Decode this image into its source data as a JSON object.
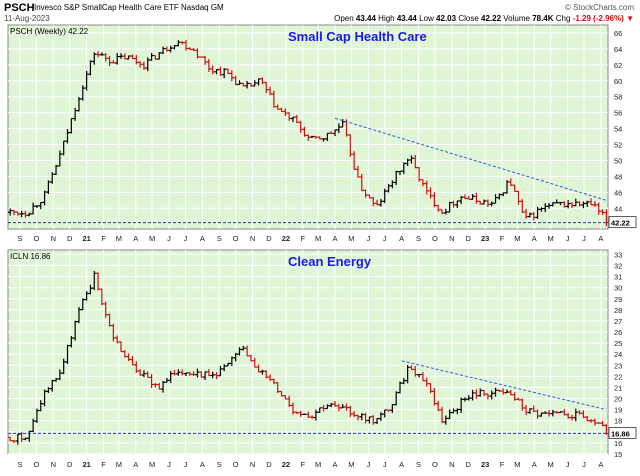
{
  "header": {
    "symbol": "PSCH",
    "name": "Invesco S&P SmallCap Health Care ETF  Nasdaq GM",
    "date": "11-Aug-2023",
    "brand": "© StockCharts.com",
    "open_label": "Open",
    "open": "43.44",
    "high_label": "High",
    "high": "43.44",
    "low_label": "Low",
    "low": "42.03",
    "close_label": "Close",
    "close": "42.22",
    "volume_label": "Volume",
    "volume": "78.4K",
    "chg_label": "Chg",
    "chg": "-1.29 (-2.96%)",
    "chg_arrow": "▼"
  },
  "colors": {
    "plot_bg": "#dff5d6",
    "grid": "#ffffff",
    "up": "#000000",
    "down": "#cc1111",
    "trend": "#3355ee",
    "title": "#1a1aee"
  },
  "chart_data": [
    {
      "type": "ohlc",
      "panel_label": "PSCH (Weekly) 42.22",
      "annotation": "Small Cap Health Care",
      "last_value_label": "42.22",
      "x_tick_labels": [
        "S",
        "O",
        "N",
        "D",
        "21",
        "F",
        "M",
        "A",
        "M",
        "J",
        "J",
        "A",
        "S",
        "O",
        "N",
        "D",
        "22",
        "F",
        "M",
        "A",
        "M",
        "J",
        "J",
        "A",
        "S",
        "O",
        "N",
        "D",
        "23",
        "F",
        "M",
        "A",
        "M",
        "J",
        "J",
        "A"
      ],
      "ylim": [
        41.4,
        67
      ],
      "y_ticks": [
        44,
        46,
        48,
        50,
        52,
        54,
        56,
        58,
        60,
        62,
        64,
        66
      ],
      "support_level": 42.2,
      "trendline": {
        "from": [
          "2022-04-01",
          55.3
        ],
        "to": [
          "2023-08-11",
          45.0
        ]
      },
      "x": [
        "2020-09",
        "2020-10",
        "2020-11",
        "2020-12",
        "2021-01",
        "2021-02",
        "2021-03",
        "2021-04",
        "2021-05",
        "2021-06",
        "2021-07",
        "2021-08",
        "2021-09",
        "2021-10",
        "2021-11",
        "2021-12",
        "2022-01",
        "2022-02",
        "2022-03",
        "2022-04",
        "2022-05",
        "2022-06",
        "2022-07",
        "2022-08",
        "2022-09",
        "2022-10",
        "2022-11",
        "2022-12",
        "2023-01",
        "2023-02",
        "2023-03",
        "2023-04",
        "2023-05",
        "2023-06",
        "2023-07",
        "2023-08"
      ],
      "close": [
        43.5,
        45.5,
        51.0,
        57.5,
        63.5,
        62.5,
        63.0,
        62.0,
        63.5,
        65.0,
        64.0,
        61.5,
        61.0,
        59.0,
        60.0,
        56.5,
        55.0,
        52.5,
        53.0,
        54.5,
        47.0,
        44.0,
        47.5,
        50.5,
        46.0,
        43.5,
        45.5,
        45.0,
        44.5,
        47.5,
        42.5,
        44.0,
        44.5,
        44.5,
        44.5,
        42.22
      ]
    },
    {
      "type": "ohlc",
      "panel_label": "ICLN 16.86",
      "annotation": "Clean Energy",
      "last_value_label": "16.86",
      "x_tick_labels": [
        "S",
        "O",
        "N",
        "D",
        "21",
        "F",
        "M",
        "A",
        "M",
        "J",
        "J",
        "A",
        "S",
        "O",
        "N",
        "D",
        "22",
        "F",
        "M",
        "A",
        "M",
        "J",
        "J",
        "A",
        "S",
        "O",
        "N",
        "D",
        "23",
        "F",
        "M",
        "A",
        "M",
        "J",
        "J",
        "A"
      ],
      "ylim": [
        15,
        33.4
      ],
      "y_ticks": [
        15,
        16,
        17,
        18,
        19,
        20,
        21,
        22,
        23,
        24,
        25,
        26,
        27,
        28,
        29,
        30,
        31,
        32,
        33
      ],
      "support_level": 16.86,
      "trendline": {
        "from": [
          "2022-08-01",
          23.4
        ],
        "to": [
          "2023-08-11",
          19.0
        ]
      },
      "x": [
        "2020-09",
        "2020-10",
        "2020-11",
        "2020-12",
        "2021-01",
        "2021-02",
        "2021-03",
        "2021-04",
        "2021-05",
        "2021-06",
        "2021-07",
        "2021-08",
        "2021-09",
        "2021-10",
        "2021-11",
        "2021-12",
        "2022-01",
        "2022-02",
        "2022-03",
        "2022-04",
        "2022-05",
        "2022-06",
        "2022-07",
        "2022-08",
        "2022-09",
        "2022-10",
        "2022-11",
        "2022-12",
        "2023-01",
        "2023-02",
        "2023-03",
        "2023-04",
        "2023-05",
        "2023-06",
        "2023-07",
        "2023-08"
      ],
      "close": [
        16.5,
        20.5,
        22.5,
        27.5,
        31.0,
        26.0,
        23.5,
        22.0,
        21.0,
        22.5,
        22.5,
        22.0,
        23.0,
        24.5,
        22.5,
        21.0,
        19.0,
        18.5,
        19.5,
        19.0,
        18.5,
        18.0,
        19.5,
        23.0,
        21.5,
        18.0,
        19.5,
        20.5,
        20.5,
        20.5,
        19.0,
        18.5,
        18.5,
        18.5,
        18.0,
        16.86
      ]
    }
  ]
}
